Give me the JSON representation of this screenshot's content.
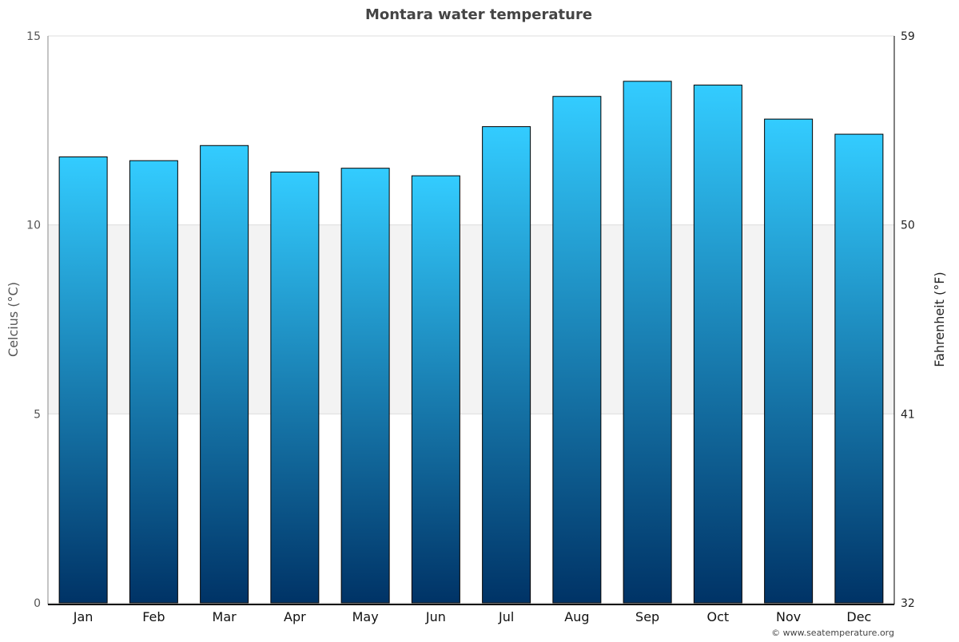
{
  "chart_data": {
    "type": "bar",
    "title": "Montara water temperature",
    "categories": [
      "Jan",
      "Feb",
      "Mar",
      "Apr",
      "May",
      "Jun",
      "Jul",
      "Aug",
      "Sep",
      "Oct",
      "Nov",
      "Dec"
    ],
    "series": [
      {
        "values": [
          11.8,
          11.7,
          12.1,
          11.4,
          11.5,
          11.3,
          12.6,
          13.4,
          13.8,
          13.7,
          12.8,
          12.4
        ]
      }
    ],
    "ylabel": "Celcius (°C)",
    "ylabel_right": "Fahrenheit (°F)",
    "ylim": [
      0,
      15
    ],
    "yticks": [
      "0",
      "5",
      "10",
      "15"
    ],
    "yticks_right": [
      "32",
      "41",
      "50",
      "59"
    ],
    "shaded_band": [
      5,
      10
    ],
    "grid": true,
    "colors": {
      "bar_top": "#33ccff",
      "bar_bottom": "#003366",
      "band": "#f3f3f3"
    }
  },
  "credit": "© www.seatemperature.org"
}
